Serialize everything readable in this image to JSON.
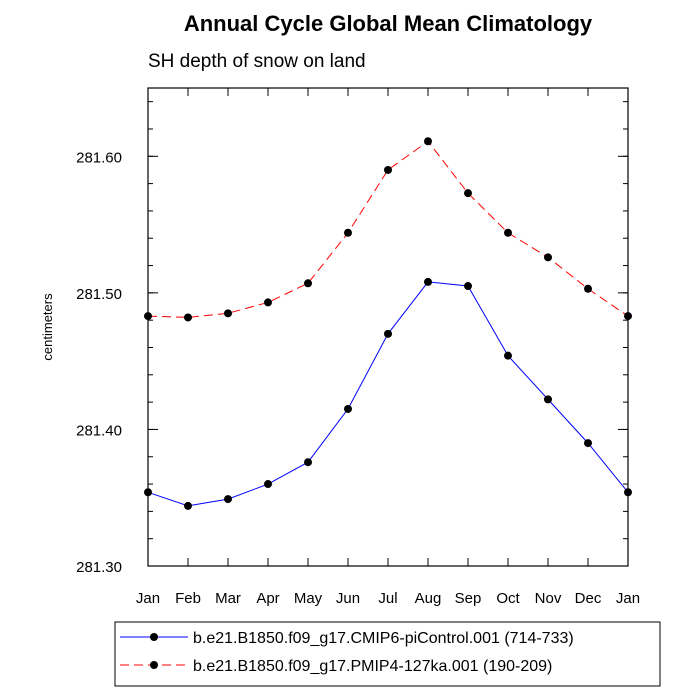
{
  "chart_data": {
    "type": "line",
    "title": "Annual Cycle Global Mean Climatology",
    "subtitle": "SH depth of snow on land",
    "ylabel": "centimeters",
    "xlabel": "",
    "categories": [
      "Jan",
      "Feb",
      "Mar",
      "Apr",
      "May",
      "Jun",
      "Jul",
      "Aug",
      "Sep",
      "Oct",
      "Nov",
      "Dec",
      "Jan"
    ],
    "ylim": [
      281.3,
      281.65
    ],
    "yticks": [
      281.3,
      281.4,
      281.5,
      281.6
    ],
    "ytick_labels": [
      "281.30",
      "281.40",
      "281.50",
      "281.60"
    ],
    "y_minor_step": 0.02,
    "grid": false,
    "legend_position": "bottom",
    "series": [
      {
        "name": "b.e21.B1850.f09_g17.CMIP6-piControl.001 (714-733)",
        "color": "#0000ff",
        "line_style": "solid",
        "marker": "filled-circle",
        "values": [
          281.354,
          281.344,
          281.349,
          281.36,
          281.376,
          281.415,
          281.47,
          281.508,
          281.505,
          281.454,
          281.422,
          281.39,
          281.354
        ]
      },
      {
        "name": "b.e21.B1850.f09_g17.PMIP4-127ka.001 (190-209)",
        "color": "#ff0000",
        "line_style": "dashed",
        "marker": "filled-circle",
        "values": [
          281.483,
          281.482,
          281.485,
          281.493,
          281.507,
          281.544,
          281.59,
          281.611,
          281.573,
          281.544,
          281.526,
          281.503,
          281.483
        ]
      }
    ]
  }
}
